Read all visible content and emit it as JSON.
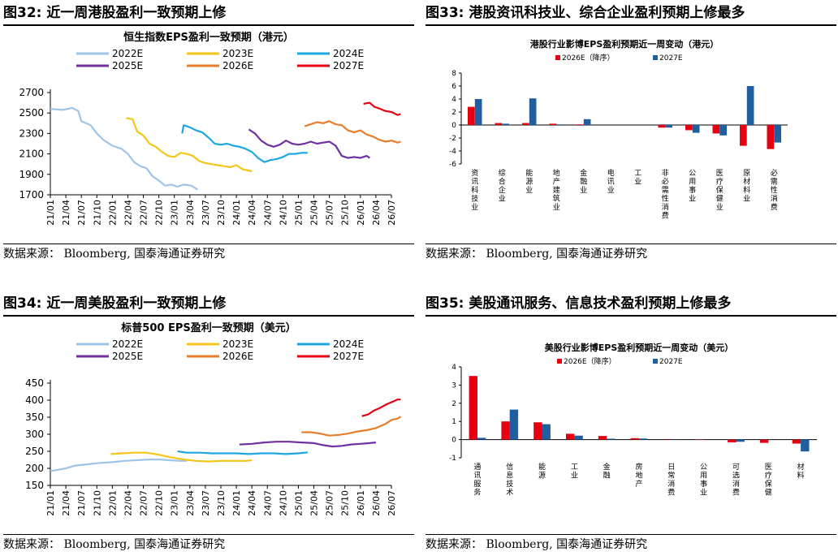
{
  "figures": [
    {
      "title": "图32:  近一周港股盈利一致预期上修",
      "source": "数据来源：  Bloomberg,  国泰海通证券研究"
    },
    {
      "title": "图33:  港股资讯科技业、综合企业盈利预期上修最多",
      "source": "数据来源：  Bloomberg,  国泰海通证券研究"
    },
    {
      "title": "图34:  近一周美股盈利一致预期上修",
      "source": "数据来源：  Bloomberg,  国泰海通证券研究"
    },
    {
      "title": "图35:  美股通讯服务、信息技术盈利预期上修最多",
      "source": "数据来源：  Bloomberg,  国泰海通证券研究"
    }
  ],
  "chart_data": [
    {
      "type": "line",
      "title": "恒生指数EPS盈利一致预期（港元）",
      "x_ticks": [
        "21/01",
        "21/04",
        "21/07",
        "21/10",
        "22/01",
        "22/04",
        "22/07",
        "22/10",
        "23/01",
        "23/04",
        "23/07",
        "23/10",
        "24/01",
        "24/04",
        "24/07",
        "24/10",
        "25/01",
        "25/04",
        "25/07",
        "25/10",
        "26/01",
        "26/04",
        "26/07"
      ],
      "ylim": [
        1700,
        2700
      ],
      "yticks": [
        1700,
        1900,
        2100,
        2300,
        2500,
        2700
      ],
      "legend_position": "top",
      "grid": false,
      "series": [
        {
          "name": "2022E",
          "color": "#9ec5e8",
          "points": [
            [
              0,
              2540
            ],
            [
              0.8,
              2530
            ],
            [
              1.4,
              2550
            ],
            [
              1.8,
              2520
            ],
            [
              2.0,
              2420
            ],
            [
              2.6,
              2380
            ],
            [
              3.0,
              2300
            ],
            [
              3.4,
              2240
            ],
            [
              4.0,
              2180
            ],
            [
              4.6,
              2150
            ],
            [
              5.0,
              2100
            ],
            [
              5.4,
              2020
            ],
            [
              5.8,
              1980
            ],
            [
              6.2,
              1960
            ],
            [
              6.6,
              1880
            ],
            [
              7.0,
              1840
            ],
            [
              7.4,
              1790
            ],
            [
              7.8,
              1800
            ],
            [
              8.2,
              1780
            ],
            [
              8.6,
              1800
            ],
            [
              9.1,
              1790
            ],
            [
              9.5,
              1750
            ]
          ]
        },
        {
          "name": "2023E",
          "color": "#f5c518",
          "points": [
            [
              4.9,
              2450
            ],
            [
              5.3,
              2440
            ],
            [
              5.6,
              2320
            ],
            [
              6.0,
              2280
            ],
            [
              6.4,
              2200
            ],
            [
              6.8,
              2170
            ],
            [
              7.2,
              2120
            ],
            [
              7.6,
              2080
            ],
            [
              8.0,
              2070
            ],
            [
              8.4,
              2110
            ],
            [
              8.8,
              2100
            ],
            [
              9.2,
              2080
            ],
            [
              9.6,
              2030
            ],
            [
              10.0,
              2010
            ],
            [
              10.4,
              2000
            ],
            [
              10.8,
              1990
            ],
            [
              11.2,
              1980
            ],
            [
              11.6,
              1970
            ],
            [
              12.0,
              1990
            ],
            [
              12.4,
              1950
            ],
            [
              13.0,
              1930
            ]
          ]
        },
        {
          "name": "2024E",
          "color": "#1ea6e0",
          "points": [
            [
              8.5,
              2300
            ],
            [
              8.6,
              2380
            ],
            [
              9.0,
              2360
            ],
            [
              9.4,
              2330
            ],
            [
              9.8,
              2310
            ],
            [
              10.2,
              2260
            ],
            [
              10.6,
              2200
            ],
            [
              11.0,
              2190
            ],
            [
              11.4,
              2200
            ],
            [
              11.8,
              2180
            ],
            [
              12.2,
              2170
            ],
            [
              12.6,
              2150
            ],
            [
              13.0,
              2120
            ],
            [
              13.4,
              2060
            ],
            [
              13.8,
              2020
            ],
            [
              14.2,
              2040
            ],
            [
              14.6,
              2050
            ],
            [
              15.0,
              2070
            ],
            [
              15.4,
              2100
            ],
            [
              15.8,
              2100
            ],
            [
              16.2,
              2110
            ],
            [
              16.6,
              2110
            ]
          ]
        },
        {
          "name": "2025E",
          "color": "#7030a0",
          "points": [
            [
              12.8,
              2340
            ],
            [
              13.2,
              2300
            ],
            [
              13.6,
              2230
            ],
            [
              14.0,
              2190
            ],
            [
              14.4,
              2170
            ],
            [
              14.8,
              2190
            ],
            [
              15.2,
              2230
            ],
            [
              15.6,
              2200
            ],
            [
              16.0,
              2190
            ],
            [
              16.4,
              2200
            ],
            [
              16.8,
              2220
            ],
            [
              17.2,
              2200
            ],
            [
              17.6,
              2210
            ],
            [
              18.0,
              2220
            ],
            [
              18.4,
              2180
            ],
            [
              18.8,
              2080
            ],
            [
              19.2,
              2060
            ],
            [
              19.6,
              2070
            ],
            [
              20.0,
              2060
            ],
            [
              20.4,
              2080
            ],
            [
              20.6,
              2060
            ]
          ]
        },
        {
          "name": "2026E",
          "color": "#e87d2c",
          "points": [
            [
              16.4,
              2370
            ],
            [
              16.8,
              2390
            ],
            [
              17.2,
              2410
            ],
            [
              17.6,
              2400
            ],
            [
              18.0,
              2420
            ],
            [
              18.4,
              2390
            ],
            [
              18.8,
              2380
            ],
            [
              19.2,
              2330
            ],
            [
              19.6,
              2310
            ],
            [
              20.0,
              2330
            ],
            [
              20.4,
              2290
            ],
            [
              20.8,
              2270
            ],
            [
              21.2,
              2240
            ],
            [
              21.6,
              2220
            ],
            [
              22.0,
              2230
            ],
            [
              22.4,
              2210
            ],
            [
              22.6,
              2220
            ]
          ]
        },
        {
          "name": "2027E",
          "color": "#e50012",
          "points": [
            [
              20.2,
              2590
            ],
            [
              20.6,
              2600
            ],
            [
              20.9,
              2560
            ],
            [
              21.3,
              2540
            ],
            [
              21.6,
              2520
            ],
            [
              22.0,
              2510
            ],
            [
              22.4,
              2480
            ],
            [
              22.6,
              2490
            ]
          ]
        }
      ]
    },
    {
      "type": "bar",
      "title": "港股行业影博EPS盈利预期近一周变动（港元）",
      "categories": [
        "资讯科技业",
        "综合企业",
        "能源业",
        "地产建筑业",
        "金融业",
        "电讯业",
        "工业",
        "非必需性消费",
        "公用事业",
        "医疗保健业",
        "原材料业",
        "必需性消费"
      ],
      "ylim": [
        -6,
        8
      ],
      "yticks": [
        -6,
        -4,
        -2,
        0,
        2,
        4,
        6,
        8
      ],
      "legend_position": "top",
      "grid": false,
      "series": [
        {
          "name": "2026E（降序）",
          "color": "#e50012",
          "values": [
            2.8,
            0.3,
            0.3,
            0.2,
            0.1,
            0,
            0,
            -0.4,
            -0.8,
            -1.3,
            -3.2,
            -3.7
          ]
        },
        {
          "name": "2027E",
          "color": "#1f5fa0",
          "values": [
            4.0,
            0.2,
            4.1,
            0.1,
            0.9,
            0,
            0,
            -0.4,
            -1.2,
            -1.6,
            6.0,
            -2.7
          ]
        }
      ]
    },
    {
      "type": "line",
      "title": "标普500 EPS盈利一致预期（美元）",
      "x_ticks": [
        "21/01",
        "21/04",
        "21/07",
        "21/10",
        "22/01",
        "22/04",
        "22/07",
        "22/10",
        "23/01",
        "23/04",
        "23/07",
        "23/10",
        "24/01",
        "24/04",
        "24/07",
        "24/10",
        "25/01",
        "25/04",
        "25/07",
        "25/10",
        "26/01",
        "26/04",
        "26/07"
      ],
      "ylim": [
        150,
        450
      ],
      "yticks": [
        150,
        200,
        250,
        300,
        350,
        400,
        450
      ],
      "legend_position": "top",
      "grid": false,
      "series": [
        {
          "name": "2022E",
          "color": "#9ec5e8",
          "points": [
            [
              0,
              192
            ],
            [
              1,
              200
            ],
            [
              1.6,
              208
            ],
            [
              2.4,
              212
            ],
            [
              3.2,
              216
            ],
            [
              4.0,
              218
            ],
            [
              4.8,
              222
            ],
            [
              5.6,
              224
            ],
            [
              6.4,
              226
            ],
            [
              7.0,
              226
            ],
            [
              7.6,
              224
            ],
            [
              8.4,
              222
            ],
            [
              8.8,
              222
            ]
          ]
        },
        {
          "name": "2023E",
          "color": "#f5c518",
          "points": [
            [
              3.9,
              242
            ],
            [
              4.6,
              244
            ],
            [
              5.4,
              246
            ],
            [
              6.2,
              246
            ],
            [
              7.0,
              240
            ],
            [
              7.8,
              232
            ],
            [
              8.6,
              226
            ],
            [
              9.4,
              222
            ],
            [
              10.2,
              220
            ],
            [
              11.0,
              222
            ],
            [
              11.8,
              222
            ],
            [
              12.6,
              222
            ],
            [
              13.0,
              224
            ]
          ]
        },
        {
          "name": "2024E",
          "color": "#1ea6e0",
          "points": [
            [
              8.2,
              250
            ],
            [
              8.8,
              246
            ],
            [
              9.6,
              246
            ],
            [
              10.4,
              244
            ],
            [
              11.2,
              244
            ],
            [
              12.0,
              244
            ],
            [
              12.8,
              242
            ],
            [
              13.6,
              244
            ],
            [
              14.4,
              244
            ],
            [
              15.2,
              242
            ],
            [
              16.0,
              244
            ],
            [
              16.6,
              247
            ]
          ]
        },
        {
          "name": "2025E",
          "color": "#7030a0",
          "points": [
            [
              12.2,
              270
            ],
            [
              13.0,
              272
            ],
            [
              13.8,
              276
            ],
            [
              14.6,
              278
            ],
            [
              15.4,
              278
            ],
            [
              16.2,
              276
            ],
            [
              17.0,
              274
            ],
            [
              17.6,
              268
            ],
            [
              18.2,
              264
            ],
            [
              18.8,
              266
            ],
            [
              19.4,
              270
            ],
            [
              20.0,
              272
            ],
            [
              20.6,
              274
            ],
            [
              21.0,
              276
            ]
          ]
        },
        {
          "name": "2026E",
          "color": "#e87d2c",
          "points": [
            [
              16.2,
              306
            ],
            [
              16.8,
              306
            ],
            [
              17.4,
              302
            ],
            [
              18.0,
              296
            ],
            [
              18.6,
              298
            ],
            [
              19.2,
              302
            ],
            [
              19.8,
              308
            ],
            [
              20.4,
              312
            ],
            [
              21.0,
              318
            ],
            [
              21.6,
              330
            ],
            [
              22.0,
              342
            ],
            [
              22.4,
              346
            ],
            [
              22.6,
              352
            ]
          ]
        },
        {
          "name": "2027E",
          "color": "#e50012",
          "points": [
            [
              20.1,
              353
            ],
            [
              20.5,
              358
            ],
            [
              20.9,
              370
            ],
            [
              21.3,
              378
            ],
            [
              21.7,
              388
            ],
            [
              22.1,
              396
            ],
            [
              22.4,
              402
            ],
            [
              22.6,
              402
            ]
          ]
        }
      ]
    },
    {
      "type": "bar",
      "title": "美股行业影博EPS盈利预期近一周变动（美元）",
      "categories": [
        "通讯服务",
        "信息技术",
        "能源",
        "工业",
        "金融",
        "房地产",
        "日常消费",
        "公用事业",
        "可选消费",
        "医疗保健",
        "材料"
      ],
      "ylim": [
        -1,
        4
      ],
      "yticks": [
        -1,
        0,
        1,
        2,
        3,
        4
      ],
      "legend_position": "top",
      "grid": false,
      "series": [
        {
          "name": "2026E（降序）",
          "color": "#e50012",
          "values": [
            3.5,
            1.0,
            0.95,
            0.32,
            0.2,
            0.08,
            0.02,
            -0.02,
            -0.15,
            -0.18,
            -0.22
          ]
        },
        {
          "name": "2027E",
          "color": "#1f5fa0",
          "values": [
            0.1,
            1.65,
            0.85,
            0.22,
            0.05,
            0.06,
            0.02,
            0.0,
            -0.12,
            0.0,
            -0.65
          ]
        }
      ]
    }
  ]
}
